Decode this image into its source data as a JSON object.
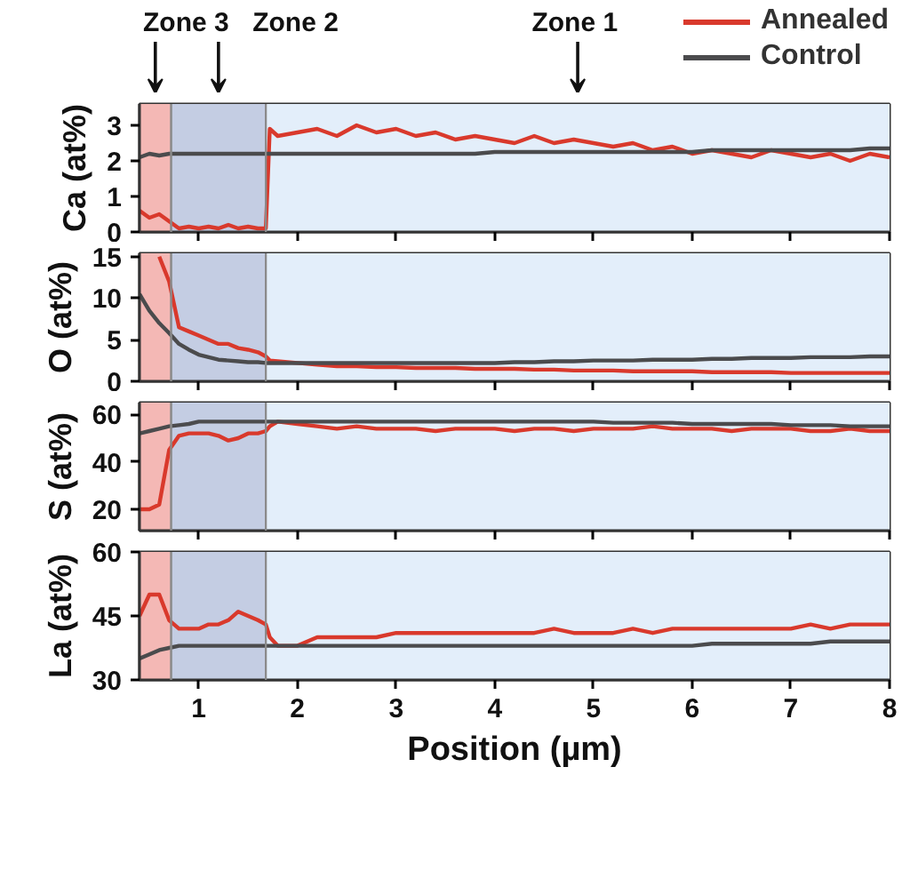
{
  "chart_data": [
    {
      "type": "line",
      "ylabel": "Ca (at%)",
      "xlim": [
        0.4,
        8
      ],
      "xticks": [
        1,
        2,
        3,
        4,
        5,
        6,
        7,
        8
      ],
      "ylim": [
        0,
        3.6
      ],
      "yticks": [
        0,
        1,
        2,
        3
      ],
      "tick_labels": "y",
      "legend": "top right",
      "bands": [
        {
          "axis": "x",
          "from": 0.4,
          "to": 0.72,
          "label": "Zone 3",
          "color": "#f4b8b5"
        },
        {
          "axis": "x",
          "from": 0.72,
          "to": 1.68,
          "label": "Zone 2",
          "color": "#c4cde3"
        },
        {
          "axis": "x",
          "from": 1.68,
          "to": 8,
          "label": "Zone 1",
          "color": "#e3eefa"
        }
      ],
      "x": [
        0.4,
        0.5,
        0.6,
        0.7,
        0.8,
        0.9,
        1.0,
        1.1,
        1.2,
        1.3,
        1.4,
        1.5,
        1.6,
        1.68,
        1.72,
        1.8,
        2.0,
        2.2,
        2.4,
        2.6,
        2.8,
        3.0,
        3.2,
        3.4,
        3.6,
        3.8,
        4.0,
        4.2,
        4.4,
        4.6,
        4.8,
        5.0,
        5.2,
        5.4,
        5.6,
        5.8,
        6.0,
        6.2,
        6.4,
        6.6,
        6.8,
        7.0,
        7.2,
        7.4,
        7.6,
        7.8,
        8.0
      ],
      "series": [
        {
          "name": "Annealed",
          "color": "#d9392c",
          "values": [
            0.6,
            0.4,
            0.5,
            0.3,
            0.1,
            0.15,
            0.1,
            0.15,
            0.1,
            0.2,
            0.1,
            0.15,
            0.1,
            0.1,
            2.9,
            2.7,
            2.8,
            2.9,
            2.7,
            3.0,
            2.8,
            2.9,
            2.7,
            2.8,
            2.6,
            2.7,
            2.6,
            2.5,
            2.7,
            2.5,
            2.6,
            2.5,
            2.4,
            2.5,
            2.3,
            2.4,
            2.2,
            2.3,
            2.2,
            2.1,
            2.3,
            2.2,
            2.1,
            2.2,
            2.0,
            2.2,
            2.1
          ]
        },
        {
          "name": "Control",
          "color": "#4b4b4d",
          "values": [
            2.1,
            2.2,
            2.15,
            2.2,
            2.2,
            2.2,
            2.2,
            2.2,
            2.2,
            2.2,
            2.2,
            2.2,
            2.2,
            2.2,
            2.2,
            2.2,
            2.2,
            2.2,
            2.2,
            2.2,
            2.2,
            2.2,
            2.2,
            2.2,
            2.2,
            2.2,
            2.25,
            2.25,
            2.25,
            2.25,
            2.25,
            2.25,
            2.25,
            2.25,
            2.25,
            2.25,
            2.25,
            2.3,
            2.3,
            2.3,
            2.3,
            2.3,
            2.3,
            2.3,
            2.3,
            2.35,
            2.35
          ]
        }
      ]
    },
    {
      "type": "line",
      "ylabel": "O (at%)",
      "xlim": [
        0.4,
        8
      ],
      "xticks": [
        1,
        2,
        3,
        4,
        5,
        6,
        7,
        8
      ],
      "ylim": [
        0,
        15.4
      ],
      "yticks": [
        0,
        5,
        10,
        15
      ],
      "tick_labels": "y",
      "bands": [
        {
          "axis": "x",
          "from": 0.4,
          "to": 0.72,
          "color": "#f4b8b5"
        },
        {
          "axis": "x",
          "from": 0.72,
          "to": 1.68,
          "color": "#c4cde3"
        },
        {
          "axis": "x",
          "from": 1.68,
          "to": 8,
          "color": "#e3eefa"
        }
      ],
      "x": [
        0.4,
        0.5,
        0.6,
        0.7,
        0.8,
        0.9,
        1.0,
        1.1,
        1.2,
        1.3,
        1.4,
        1.5,
        1.6,
        1.68,
        1.72,
        1.8,
        2.0,
        2.2,
        2.4,
        2.6,
        2.8,
        3.0,
        3.2,
        3.4,
        3.6,
        3.8,
        4.0,
        4.2,
        4.4,
        4.6,
        4.8,
        5.0,
        5.2,
        5.4,
        5.6,
        5.8,
        6.0,
        6.2,
        6.4,
        6.6,
        6.8,
        7.0,
        7.2,
        7.4,
        7.6,
        7.8,
        8.0
      ],
      "series": [
        {
          "color": "#d9392c",
          "values": [
            null,
            null,
            15,
            12,
            6.5,
            6,
            5.5,
            5,
            4.5,
            4.5,
            4,
            3.8,
            3.5,
            3,
            2.5,
            2.4,
            2.2,
            2,
            1.8,
            1.8,
            1.7,
            1.7,
            1.6,
            1.6,
            1.6,
            1.5,
            1.5,
            1.5,
            1.4,
            1.4,
            1.3,
            1.3,
            1.3,
            1.2,
            1.2,
            1.2,
            1.2,
            1.1,
            1.1,
            1.1,
            1.1,
            1.0,
            1.0,
            1.0,
            1.0,
            1.0,
            1.0
          ]
        },
        {
          "color": "#4b4b4d",
          "values": [
            10.5,
            8.5,
            7,
            5.8,
            4.5,
            3.8,
            3.2,
            2.9,
            2.6,
            2.5,
            2.4,
            2.3,
            2.3,
            2.2,
            2.2,
            2.2,
            2.2,
            2.2,
            2.2,
            2.2,
            2.2,
            2.2,
            2.2,
            2.2,
            2.2,
            2.2,
            2.2,
            2.3,
            2.3,
            2.4,
            2.4,
            2.5,
            2.5,
            2.5,
            2.6,
            2.6,
            2.6,
            2.7,
            2.7,
            2.8,
            2.8,
            2.8,
            2.9,
            2.9,
            2.9,
            3.0,
            3.0
          ]
        }
      ]
    },
    {
      "type": "line",
      "ylabel": "S (at%)",
      "xlim": [
        0.4,
        8
      ],
      "xticks": [
        1,
        2,
        3,
        4,
        5,
        6,
        7,
        8
      ],
      "ylim": [
        11,
        65
      ],
      "yticks": [
        20,
        40,
        60
      ],
      "tick_labels": "y",
      "bands": [
        {
          "axis": "x",
          "from": 0.4,
          "to": 0.72,
          "color": "#f4b8b5"
        },
        {
          "axis": "x",
          "from": 0.72,
          "to": 1.68,
          "color": "#c4cde3"
        },
        {
          "axis": "x",
          "from": 1.68,
          "to": 8,
          "color": "#e3eefa"
        }
      ],
      "x": [
        0.4,
        0.5,
        0.6,
        0.7,
        0.8,
        0.9,
        1.0,
        1.1,
        1.2,
        1.3,
        1.4,
        1.5,
        1.6,
        1.68,
        1.72,
        1.8,
        2.0,
        2.2,
        2.4,
        2.6,
        2.8,
        3.0,
        3.2,
        3.4,
        3.6,
        3.8,
        4.0,
        4.2,
        4.4,
        4.6,
        4.8,
        5.0,
        5.2,
        5.4,
        5.6,
        5.8,
        6.0,
        6.2,
        6.4,
        6.6,
        6.8,
        7.0,
        7.2,
        7.4,
        7.6,
        7.8,
        8.0
      ],
      "series": [
        {
          "color": "#d9392c",
          "values": [
            20,
            20,
            22,
            45,
            51,
            52,
            52,
            52,
            51,
            49,
            50,
            52,
            52,
            53,
            55,
            57,
            56,
            55,
            54,
            55,
            54,
            54,
            54,
            53,
            54,
            54,
            54,
            53,
            54,
            54,
            53,
            54,
            54,
            54,
            55,
            54,
            54,
            54,
            53,
            54,
            54,
            54,
            53,
            53,
            54,
            53,
            53
          ]
        },
        {
          "color": "#4b4b4d",
          "values": [
            52,
            53,
            54,
            55,
            55.5,
            56,
            57,
            57,
            57,
            57,
            57,
            57,
            57,
            57,
            57,
            57,
            57,
            57,
            57,
            57,
            57,
            57,
            57,
            57,
            57,
            57,
            57,
            57,
            57,
            57,
            57,
            57,
            56.5,
            56.5,
            56.5,
            56.5,
            56,
            56,
            56,
            56,
            56,
            55.5,
            55.5,
            55.5,
            55,
            55,
            55
          ]
        }
      ]
    },
    {
      "type": "line",
      "ylabel": "La (at%)",
      "xlabel": "Position (µm)",
      "xlim": [
        0.4,
        8
      ],
      "xticks": [
        1,
        2,
        3,
        4,
        5,
        6,
        7,
        8
      ],
      "ylim": [
        30,
        60
      ],
      "yticks": [
        30,
        45,
        60
      ],
      "bands": [
        {
          "axis": "x",
          "from": 0.4,
          "to": 0.72,
          "color": "#f4b8b5"
        },
        {
          "axis": "x",
          "from": 0.72,
          "to": 1.68,
          "color": "#c4cde3"
        },
        {
          "axis": "x",
          "from": 1.68,
          "to": 8,
          "color": "#e3eefa"
        }
      ],
      "x": [
        0.4,
        0.5,
        0.6,
        0.7,
        0.8,
        0.9,
        1.0,
        1.1,
        1.2,
        1.3,
        1.4,
        1.5,
        1.6,
        1.68,
        1.72,
        1.8,
        2.0,
        2.2,
        2.4,
        2.6,
        2.8,
        3.0,
        3.2,
        3.4,
        3.6,
        3.8,
        4.0,
        4.2,
        4.4,
        4.6,
        4.8,
        5.0,
        5.2,
        5.4,
        5.6,
        5.8,
        6.0,
        6.2,
        6.4,
        6.6,
        6.8,
        7.0,
        7.2,
        7.4,
        7.6,
        7.8,
        8.0
      ],
      "series": [
        {
          "color": "#d9392c",
          "values": [
            45,
            50,
            50,
            44,
            42,
            42,
            42,
            43,
            43,
            44,
            46,
            45,
            44,
            43,
            40,
            38,
            38,
            40,
            40,
            40,
            40,
            41,
            41,
            41,
            41,
            41,
            41,
            41,
            41,
            42,
            41,
            41,
            41,
            42,
            41,
            42,
            42,
            42,
            42,
            42,
            42,
            42,
            43,
            42,
            43,
            43,
            43
          ]
        },
        {
          "color": "#4b4b4d",
          "values": [
            35,
            36,
            37,
            37.5,
            38,
            38,
            38,
            38,
            38,
            38,
            38,
            38,
            38,
            38,
            38,
            38,
            38,
            38,
            38,
            38,
            38,
            38,
            38,
            38,
            38,
            38,
            38,
            38,
            38,
            38,
            38,
            38,
            38,
            38,
            38,
            38,
            38,
            38.5,
            38.5,
            38.5,
            38.5,
            38.5,
            38.5,
            39,
            39,
            39,
            39
          ]
        }
      ]
    }
  ]
}
